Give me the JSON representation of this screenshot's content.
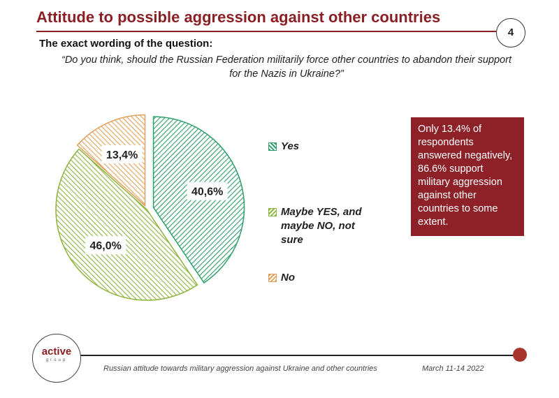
{
  "header": {
    "title": "Attitude to possible aggression against other countries",
    "page_number": "4"
  },
  "question": {
    "label": "The exact wording of the question:",
    "text": "“Do you think, should the Russian Federation militarily force other countries to abandon their support for the Nazis in Ukraine?”"
  },
  "chart_data": {
    "type": "pie",
    "slices": [
      {
        "name": "Yes",
        "value": 40.6,
        "label": "40,6%",
        "color": "#2e9e6a"
      },
      {
        "name": "Maybe YES, and maybe NO, not sure",
        "value": 46.0,
        "label": "46,0%",
        "color": "#8db43e"
      },
      {
        "name": "No",
        "value": 13.4,
        "label": "13,4%",
        "color": "#e0a05a"
      }
    ],
    "legend_placement": "right"
  },
  "legend": {
    "yes": "Yes",
    "maybe_line1": "Maybe YES, and",
    "maybe_line2": "maybe NO, not",
    "maybe_line3": "sure",
    "no": "No"
  },
  "callout": {
    "text": "Only 13.4% of respondents answered negatively, 86.6% support military aggression against other countries to some extent.",
    "color": "#8d2127"
  },
  "footer": {
    "logo_word": "active",
    "logo_sub": "group",
    "caption": "Russian attitude towards military aggression against Ukraine and other countries",
    "date": "March 11-14 2022"
  }
}
